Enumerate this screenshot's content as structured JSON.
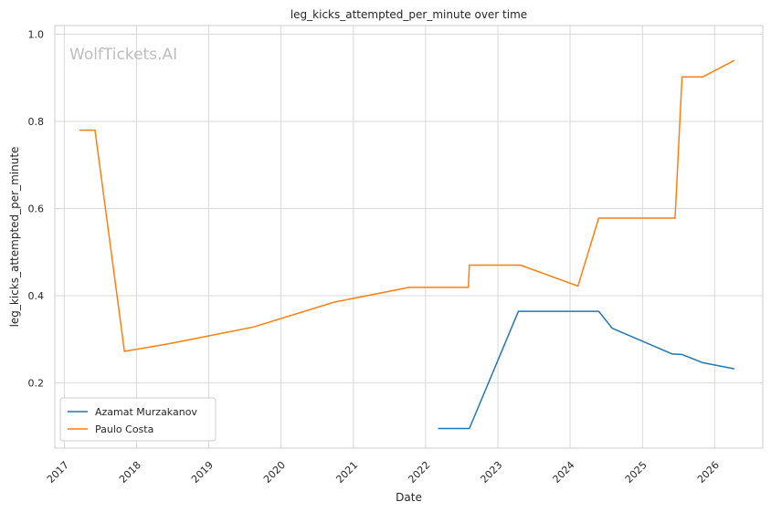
{
  "chart_data": {
    "type": "line",
    "title": "leg_kicks_attempted_per_minute over time",
    "xlabel": "Date",
    "ylabel": "leg_kicks_attempted_per_minute",
    "watermark": "WolfTickets.AI",
    "xlim": [
      "2016-11-14",
      "2026-09-01"
    ],
    "ylim": [
      0.05,
      1.02
    ],
    "x_ticks": [
      "2017",
      "2018",
      "2019",
      "2020",
      "2021",
      "2022",
      "2023",
      "2024",
      "2025",
      "2026"
    ],
    "y_ticks": [
      "0.2",
      "0.4",
      "0.6",
      "0.8",
      "1.0"
    ],
    "grid": true,
    "legend_position": "lower-left",
    "series": [
      {
        "name": "Azamat Murzakanov",
        "color": "#1f77b4",
        "points": [
          [
            "2022-03-05",
            0.095
          ],
          [
            "2022-08-10",
            0.095
          ],
          [
            "2023-04-15",
            0.364
          ],
          [
            "2024-05-25",
            0.364
          ],
          [
            "2024-08-01",
            0.325
          ],
          [
            "2025-06-01",
            0.266
          ],
          [
            "2025-07-20",
            0.265
          ],
          [
            "2025-11-01",
            0.246
          ],
          [
            "2026-04-10",
            0.232
          ]
        ]
      },
      {
        "name": "Paulo Costa",
        "color": "#ff7f0e",
        "points": [
          [
            "2017-03-18",
            0.78
          ],
          [
            "2017-06-05",
            0.78
          ],
          [
            "2017-11-01",
            0.272
          ],
          [
            "2018-06-20",
            0.29
          ],
          [
            "2019-08-15",
            0.328
          ],
          [
            "2020-09-25",
            0.385
          ],
          [
            "2021-10-10",
            0.419
          ],
          [
            "2022-08-05",
            0.419
          ],
          [
            "2022-08-10",
            0.47
          ],
          [
            "2023-04-25",
            0.47
          ],
          [
            "2024-02-10",
            0.422
          ],
          [
            "2024-05-25",
            0.578
          ],
          [
            "2025-06-15",
            0.578
          ],
          [
            "2025-07-20",
            0.902
          ],
          [
            "2025-11-01",
            0.902
          ],
          [
            "2026-04-10",
            0.94
          ]
        ]
      }
    ]
  }
}
